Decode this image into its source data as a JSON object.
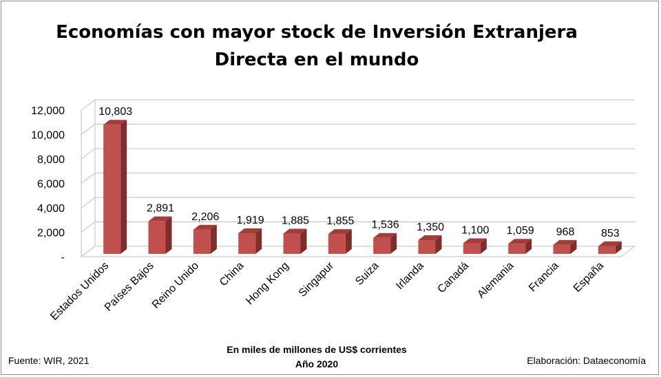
{
  "title_lines": [
    "Economías con mayor stock de Inversión Extranjera",
    "Directa en el mundo"
  ],
  "subtitle": [
    "En  miles de millones de US$ corrientes",
    "Año 2020"
  ],
  "source": "Fuente: WIR, 2021",
  "credit": "Elaboración: Dataeconomía",
  "colors": {
    "bar_front": "#c0504d",
    "bar_side": "#7f2d2b",
    "bar_top": "#a33d3a",
    "grid": "#bfbfbf"
  },
  "chart_data": {
    "type": "bar",
    "title": "Economías con mayor stock de Inversión Extranjera Directa en el mundo",
    "categories": [
      "Estados Unidos",
      "Países Bajos",
      "Reino Unido",
      "China",
      "Hong Kong",
      "Singapur",
      "Suiza",
      "Irlanda",
      "Canadá",
      "Alemania",
      "Francia",
      "España"
    ],
    "values": [
      10803,
      2891,
      2206,
      1919,
      1885,
      1855,
      1536,
      1350,
      1100,
      1059,
      968,
      853
    ],
    "value_labels": [
      "10,803",
      "2,891",
      "2,206",
      "1,919",
      "1,885",
      "1,855",
      "1,536",
      "1,350",
      "1,100",
      "1,059",
      "968",
      "853"
    ],
    "ylim": [
      0,
      12000
    ],
    "yticks": [
      0,
      2000,
      4000,
      6000,
      8000,
      10000,
      12000
    ],
    "ytick_labels": [
      "-",
      "2,000",
      "4,000",
      "6,000",
      "8,000",
      "10,000",
      "12,000"
    ],
    "grid": true,
    "style": "3d"
  }
}
